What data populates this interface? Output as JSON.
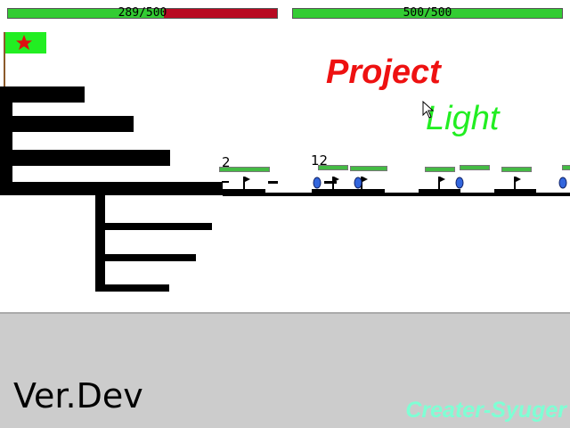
{
  "hud": {
    "left_hp": {
      "text": "289/500",
      "value": 289,
      "max": 500
    },
    "right_hp": {
      "text": "500/500",
      "value": 500,
      "max": 500
    }
  },
  "title": {
    "line1": "Project",
    "line2": "Light"
  },
  "battle": {
    "counter_left": "2",
    "counter_right": "12"
  },
  "bottom": {
    "version": "Ver.Dev",
    "credit": "Creater-Syuger"
  },
  "colors": {
    "hp_green": "#33cc33",
    "hp_red": "#b80a22",
    "title_red": "#ee1111",
    "title_green": "#22ee22",
    "credit": "#7fffd4",
    "flag_green": "#22ee22",
    "flag_star": "#dd1111",
    "unit_blue": "#3366dd"
  },
  "icons": {
    "flag": "flag-star-icon",
    "cursor": "cursor-arrow-icon"
  }
}
